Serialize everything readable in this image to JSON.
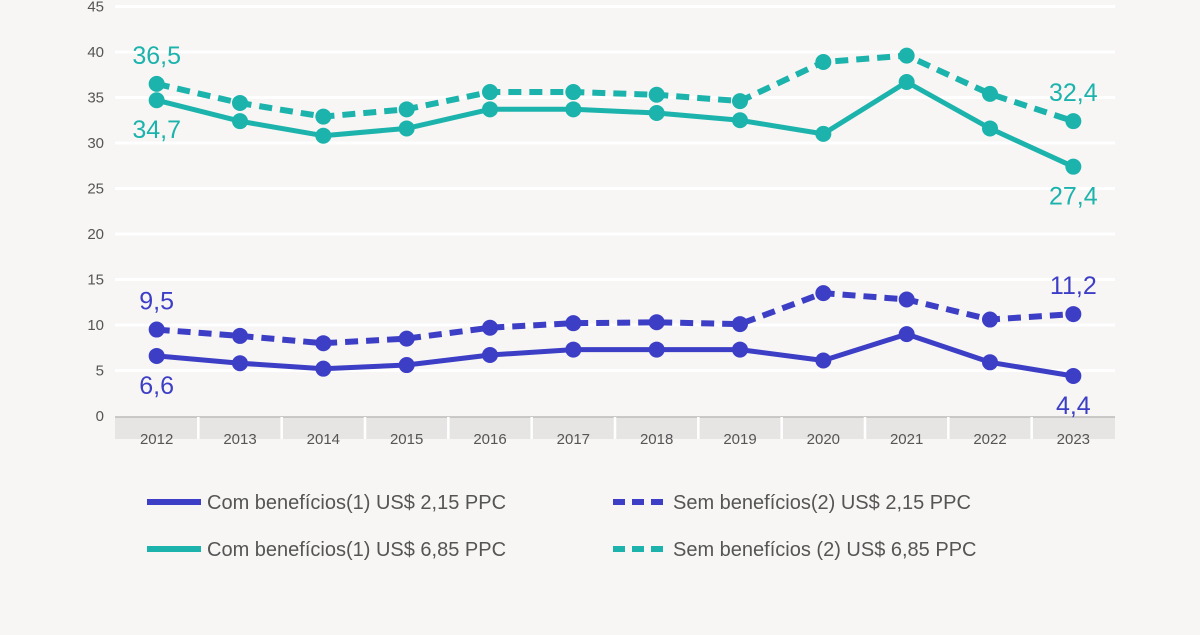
{
  "chart_data": {
    "type": "line",
    "x": [
      "2012",
      "2013",
      "2014",
      "2015",
      "2016",
      "2017",
      "2018",
      "2019",
      "2020",
      "2021",
      "2022",
      "2023"
    ],
    "ylim": [
      0,
      45
    ],
    "yticks": [
      "0",
      "5",
      "10",
      "15",
      "20",
      "25",
      "30",
      "35",
      "40",
      "45"
    ],
    "grid": true,
    "legend_position": "bottom",
    "series": [
      {
        "name": "Com benefícios(1)  US$ 2,15 PPC",
        "style": "solid",
        "color": "#3d3ec6",
        "values": [
          6.6,
          5.8,
          5.2,
          5.6,
          6.7,
          7.3,
          7.3,
          7.3,
          6.1,
          9.0,
          5.9,
          4.4
        ],
        "labels": [
          {
            "index": 0,
            "text": "6,6",
            "position": "below"
          },
          {
            "index": 11,
            "text": "4,4",
            "position": "below"
          }
        ]
      },
      {
        "name": "Sem benefícios(2) US$ 2,15 PPC",
        "style": "dashed",
        "color": "#3d3ec6",
        "values": [
          9.5,
          8.8,
          8.0,
          8.5,
          9.7,
          10.2,
          10.3,
          10.1,
          13.5,
          12.8,
          10.6,
          11.2
        ],
        "labels": [
          {
            "index": 0,
            "text": "9,5",
            "position": "above"
          },
          {
            "index": 11,
            "text": "11,2",
            "position": "above"
          }
        ]
      },
      {
        "name": "Com benefícios(1) US$ 6,85 PPC",
        "style": "solid",
        "color": "#1db3ad",
        "values": [
          34.7,
          32.4,
          30.8,
          31.6,
          33.7,
          33.7,
          33.3,
          32.5,
          31.0,
          36.7,
          31.6,
          27.4
        ],
        "labels": [
          {
            "index": 0,
            "text": "34,7",
            "position": "below"
          },
          {
            "index": 11,
            "text": "27,4",
            "position": "below"
          }
        ]
      },
      {
        "name": "Sem benefícios (2) US$ 6,85 PPC",
        "style": "dashed",
        "color": "#1db3ad",
        "values": [
          36.5,
          34.4,
          32.9,
          33.7,
          35.6,
          35.6,
          35.3,
          34.6,
          38.9,
          39.6,
          35.4,
          32.4
        ],
        "labels": [
          {
            "index": 0,
            "text": "36,5",
            "position": "above"
          },
          {
            "index": 11,
            "text": "32,4",
            "position": "above"
          }
        ]
      }
    ]
  },
  "legend": [
    {
      "label": "Com benefícios(1)  US$ 2,15 PPC",
      "color": "#3d3ec6",
      "style": "solid"
    },
    {
      "label": "Sem benefícios(2) US$ 2,15 PPC",
      "color": "#3d3ec6",
      "style": "dashed"
    },
    {
      "label": "Com benefícios(1) US$ 6,85 PPC",
      "color": "#1db3ad",
      "style": "solid"
    },
    {
      "label": "Sem benefícios (2) US$ 6,85 PPC",
      "color": "#1db3ad",
      "style": "dashed"
    }
  ]
}
